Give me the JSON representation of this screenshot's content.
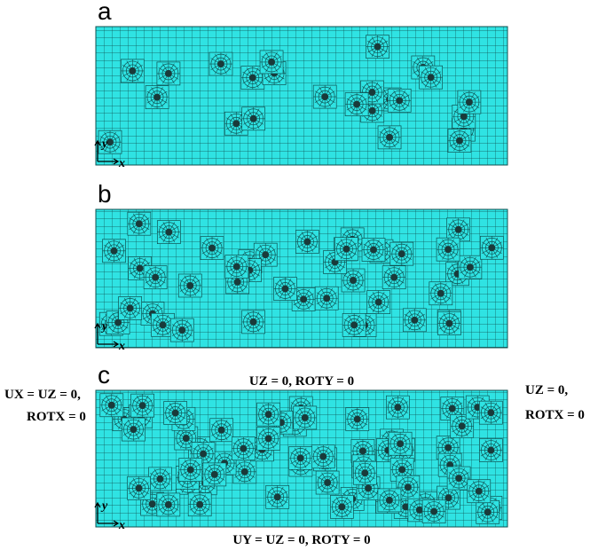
{
  "panels": [
    {
      "label": "a",
      "axis_x": "x",
      "axis_y": "y"
    },
    {
      "label": "b",
      "axis_x": "x",
      "axis_y": "y"
    },
    {
      "label": "c",
      "axis_x": "x",
      "axis_y": "y"
    }
  ],
  "boundary_conditions": {
    "top": "UZ = 0, ROTY = 0",
    "bottom": "UY = UZ = 0, ROTY = 0",
    "left": [
      "UX = UZ = 0,",
      "ROTX = 0"
    ],
    "right": [
      "UZ = 0,",
      "ROTX = 0"
    ]
  }
}
